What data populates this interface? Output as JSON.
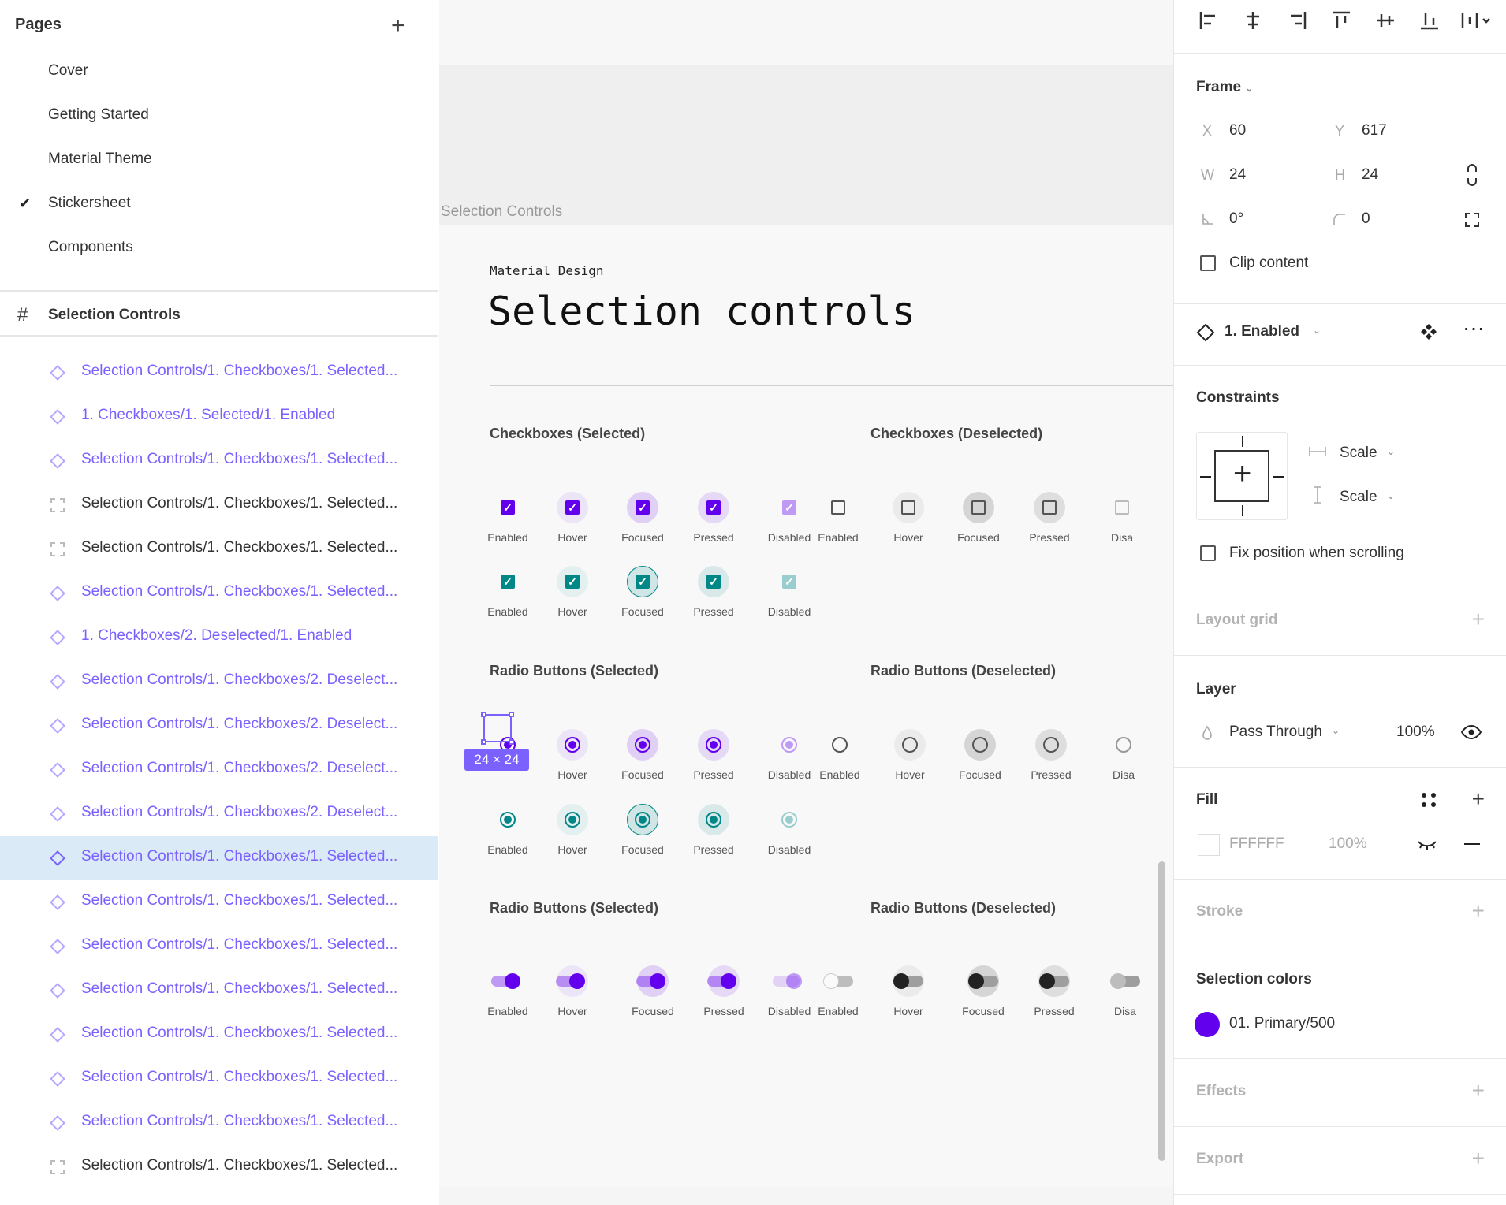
{
  "pages": {
    "title": "Pages",
    "add": "+",
    "items": [
      {
        "label": "Cover",
        "active": false
      },
      {
        "label": "Getting Started",
        "active": false
      },
      {
        "label": "Material Theme",
        "active": false
      },
      {
        "label": "Stickersheet",
        "active": true
      },
      {
        "label": "Components",
        "active": false
      }
    ]
  },
  "layers": {
    "frame_label": "Selection Controls",
    "items": [
      {
        "label": "Selection Controls/1. Checkboxes/1. Selected...",
        "kind": "component",
        "selected": false
      },
      {
        "label": "1. Checkboxes/1. Selected/1. Enabled",
        "kind": "component",
        "selected": false
      },
      {
        "label": "Selection Controls/1. Checkboxes/1. Selected...",
        "kind": "component",
        "selected": false
      },
      {
        "label": "Selection Controls/1. Checkboxes/1. Selected...",
        "kind": "frame",
        "selected": false
      },
      {
        "label": "Selection Controls/1. Checkboxes/1. Selected...",
        "kind": "frame",
        "selected": false
      },
      {
        "label": "Selection Controls/1. Checkboxes/1. Selected...",
        "kind": "component",
        "selected": false
      },
      {
        "label": "1. Checkboxes/2. Deselected/1. Enabled",
        "kind": "component",
        "selected": false
      },
      {
        "label": "Selection Controls/1. Checkboxes/2. Deselect...",
        "kind": "component",
        "selected": false
      },
      {
        "label": "Selection Controls/1. Checkboxes/2. Deselect...",
        "kind": "component",
        "selected": false
      },
      {
        "label": "Selection Controls/1. Checkboxes/2. Deselect...",
        "kind": "component",
        "selected": false
      },
      {
        "label": "Selection Controls/1. Checkboxes/2. Deselect...",
        "kind": "component",
        "selected": false
      },
      {
        "label": "Selection Controls/1. Checkboxes/1. Selected...",
        "kind": "component",
        "selected": true
      },
      {
        "label": "Selection Controls/1. Checkboxes/1. Selected...",
        "kind": "component",
        "selected": false
      },
      {
        "label": "Selection Controls/1. Checkboxes/1. Selected...",
        "kind": "component",
        "selected": false
      },
      {
        "label": "Selection Controls/1. Checkboxes/1. Selected...",
        "kind": "component",
        "selected": false
      },
      {
        "label": "Selection Controls/1. Checkboxes/1. Selected...",
        "kind": "component",
        "selected": false
      },
      {
        "label": "Selection Controls/1. Checkboxes/1. Selected...",
        "kind": "component",
        "selected": false
      },
      {
        "label": "Selection Controls/1. Checkboxes/1. Selected...",
        "kind": "component",
        "selected": false
      },
      {
        "label": "Selection Controls/1. Checkboxes/1. Selected...",
        "kind": "frame",
        "selected": false
      }
    ]
  },
  "canvas": {
    "frame_name": "Selection Controls",
    "subtitle": "Material Design",
    "title": "Selection controls",
    "selection_size": "24 × 24",
    "states": [
      "Enabled",
      "Hover",
      "Focused",
      "Pressed",
      "Disabled"
    ],
    "deselected_states": [
      "Enabled",
      "Hover",
      "Focused",
      "Pressed",
      "Disa"
    ],
    "sections": {
      "cb_sel": "Checkboxes (Selected)",
      "cb_desel": "Checkboxes (Deselected)",
      "rb_sel": "Radio Buttons (Selected)",
      "rb_desel": "Radio Buttons (Deselected)",
      "sw_sel": "Radio Buttons (Selected)",
      "sw_desel": "Radio Buttons (Deselected)"
    },
    "colors": {
      "primary": "#6200ee",
      "secondary": "#018786",
      "deselected": "#555555"
    }
  },
  "inspector": {
    "frame": {
      "title": "Frame",
      "x_label": "X",
      "x": "60",
      "y_label": "Y",
      "y": "617",
      "w_label": "W",
      "w": "24",
      "h_label": "H",
      "h": "24",
      "rotation": "0°",
      "radius": "0",
      "clip_content": "Clip content"
    },
    "component": {
      "name": "1. Enabled"
    },
    "constraints": {
      "title": "Constraints",
      "horizontal": "Scale",
      "vertical": "Scale",
      "fix_position": "Fix position when scrolling"
    },
    "layout_grid": {
      "title": "Layout grid"
    },
    "layer": {
      "title": "Layer",
      "blend": "Pass Through",
      "opacity": "100%"
    },
    "fill": {
      "title": "Fill",
      "hex": "FFFFFF",
      "opacity": "100%",
      "swatch": "#ffffff"
    },
    "stroke": {
      "title": "Stroke"
    },
    "selection_colors": {
      "title": "Selection colors",
      "name": "01. Primary/500",
      "swatch": "#6200ee"
    },
    "effects": {
      "title": "Effects"
    },
    "export": {
      "title": "Export"
    }
  }
}
